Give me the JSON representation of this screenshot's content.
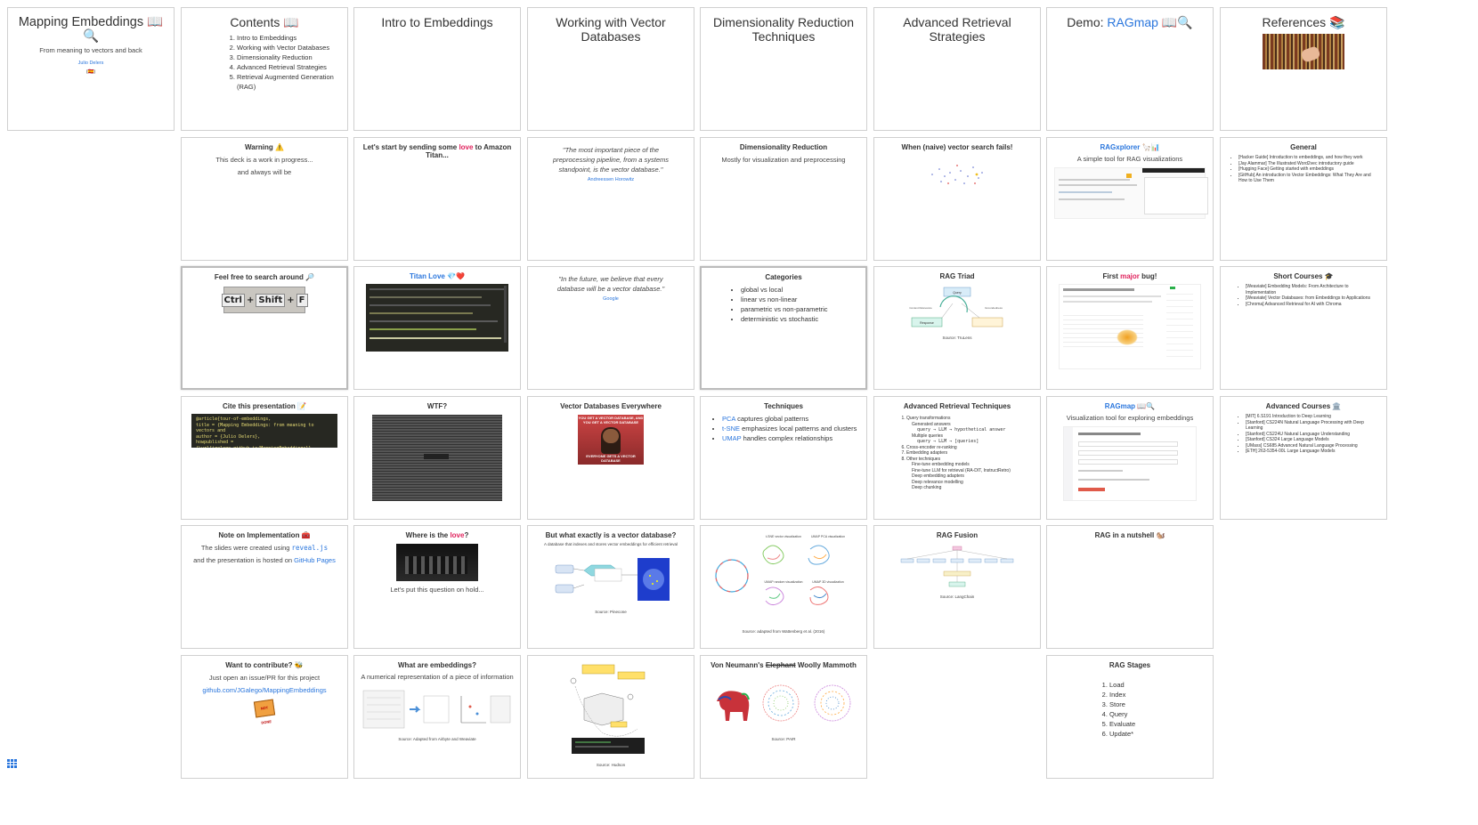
{
  "slides": {
    "c0_0": {
      "title": "Mapping Embeddings 📖🔍",
      "subtitle": "From meaning to vectors and back",
      "author": "Julio Delers",
      "flag": "(🇪🇸)"
    },
    "c1_0": {
      "title": "Contents 📖",
      "items": [
        "Intro to Embeddings",
        "Working with Vector Databases",
        "Dimensionality Reduction",
        "Advanced Retrieval Strategies",
        "Retrieval Augmented Generation (RAG)"
      ]
    },
    "c1_1": {
      "title": "Warning ⚠️",
      "line1": "This deck is a work in progress...",
      "line2": "and always will be"
    },
    "c1_2": {
      "title": "Feel free to search around 🔎",
      "keys": [
        "Ctrl",
        "Shift",
        "F"
      ]
    },
    "c1_3": {
      "title": "Cite this presentation 📝",
      "code": [
        "@article{tour-of-embeddings,",
        "  title = {Mapping Embeddings: from meaning to vectors and",
        "  author = {Julio Delers},",
        "  howpublished = {\\url{jgalego.github.io/MappingEmbeddings}},",
        "  year = {2024}",
        "}"
      ]
    },
    "c1_4": {
      "title": "Note on Implementation 🧰",
      "l1a": "The slides were created using ",
      "l1b": "reveal.js",
      "l2a": "and the presentation is hosted on ",
      "l2b": "GitHub Pages"
    },
    "c1_5": {
      "title": "Want to contribute? 🐝",
      "l1": "Just open an issue/PR for this project",
      "link": "github.com/JGalego/MappingEmbeddings",
      "sign": "NOT DONE"
    },
    "c2_0": {
      "title": "Intro to Embeddings"
    },
    "c2_1": {
      "t1": "Let's start by sending some ",
      "t2": "love",
      "t3": " to Amazon Titan..."
    },
    "c2_2": {
      "title": "Titan Love 💎❤️"
    },
    "c2_3": {
      "title": "WTF?"
    },
    "c2_4": {
      "t1": "Where is the ",
      "t2": "love",
      "t3": "?",
      "caption": "Let's put this question on hold..."
    },
    "c2_5": {
      "title": "What are embeddings?",
      "subtitle": "A numerical representation of a piece of information",
      "source": "Source: Adapted from Airbyte and Weaviate"
    },
    "c3_0": {
      "title": "Working with Vector Databases"
    },
    "c3_1": {
      "quote": "\"The most important piece of the preprocessing pipeline, from a systems standpoint, is the vector database.\"",
      "attrib": "Andreessen Horowitz"
    },
    "c3_2": {
      "quote": "\"In the future, we believe that every database will be a vector database.\"",
      "attrib": "Google"
    },
    "c3_3": {
      "title": "Vector Databases Everywhere",
      "meme_top": "YOU GET A VECTOR DATABASE, AND YOU GET A VECTOR DATABASE",
      "meme_bottom": "EVERYONE GETS A VECTOR DATABASE"
    },
    "c3_4": {
      "title": "But what exactly is a vector database?",
      "subtitle": "A database that indexes and stores vector embeddings for efficient retrieval",
      "source": "Source: Pinecone"
    },
    "c3_5": {
      "source": "Source: Hudson"
    },
    "c4_0": {
      "title": "Dimensionality Reduction Techniques"
    },
    "c4_1": {
      "title": "Dimensionality Reduction",
      "line": "Mostly for visualization and preprocessing"
    },
    "c4_2": {
      "title": "Categories",
      "items": [
        "global vs local",
        "linear vs non-linear",
        "parametric vs non-parametric",
        "deterministic vs stochastic"
      ]
    },
    "c4_3": {
      "title": "Techniques",
      "items": [
        {
          "k": "PCA",
          "v": " captures global patterns"
        },
        {
          "k": "t-SNE",
          "v": " emphasizes local patterns and clusters"
        },
        {
          "k": "UMAP",
          "v": " handles complex relationships"
        }
      ]
    },
    "c4_4": {
      "labels": [
        "t-SNE vector visualization",
        "UMAP PCA visualization",
        "UMAP random visualization",
        "UMAP 3D visualization"
      ],
      "source": "Source: adapted from Wattenberg et al. (2016)"
    },
    "c4_5": {
      "t1": "Von Neumann's ",
      "t2": "Elephant",
      "t3": " Woolly Mammoth",
      "source": "Source: PAIR"
    },
    "c5_0": {
      "title": "Advanced Retrieval Strategies"
    },
    "c5_1": {
      "title": "When (naive) vector search fails!"
    },
    "c5_2": {
      "title": "RAG Triad",
      "source": "Source: TruLens",
      "nodes": [
        "Query",
        "Context Relevance",
        "Response",
        "Groundedness"
      ]
    },
    "c5_3": {
      "title": "Advanced Retrieval Techniques",
      "items": [
        "Query transformations",
        "Generated answers",
        "query → LLM → hypothetical answer",
        "Multiple queries",
        "query → LLM → [queries]",
        "Cross-encoder re-ranking",
        "Embedding adapters",
        "Other techniques",
        "Fine-tune embedding models",
        "Fine-tune LLM for retrieval (RA-DIT, InstructRetro)",
        "Deep embedding adapters",
        "Deep relevance modelling",
        "Deep chunking"
      ]
    },
    "c5_4": {
      "title": "RAG Fusion",
      "source": "Source: LangChain"
    },
    "c6_0": {
      "title_a": "Demo: ",
      "title_b": "RAGmap",
      "title_c": " 📖🔍"
    },
    "c6_1": {
      "title": "RAGxplorer 🦙📊",
      "subtitle": "A simple tool for RAG visualizations"
    },
    "c6_2": {
      "t1": "First ",
      "t2": "major",
      "t3": " bug!"
    },
    "c6_3": {
      "title_a": "RAGmap",
      "title_b": " 📖🔍",
      "subtitle": "Visualization tool for exploring embeddings"
    },
    "c6_4": {
      "title": "RAG in a nutshell 🐿️"
    },
    "c6_5": {
      "title": "RAG Stages",
      "items": [
        "Load",
        "Index",
        "Store",
        "Query",
        "Evaluate",
        "Update*"
      ]
    },
    "c7_0": {
      "title": "References 📚"
    },
    "c7_1": {
      "title": "General",
      "items": [
        "[Hacker Guide] Introduction to embeddings, and how they work",
        "[Jay Alammar] The Illustrated Word2vec introductory guide",
        "[Hugging Face] Getting started with embeddings",
        "[GitHub] An introduction to Vector Embeddings: What They Are and How to Use Them"
      ]
    },
    "c7_2": {
      "title": "Short Courses 🎓",
      "items": [
        "[Weaviate] Embedding Models: From Architecture to Implementation",
        "[Weaviate] Vector Databases: from Embeddings to Applications",
        "[Chroma] Advanced Retrieval for AI with Chroma"
      ]
    },
    "c7_3": {
      "title": "Advanced Courses 🏛️",
      "items": [
        "[MIT] 6.S191 Introduction to Deep Learning",
        "[Stanford] CS224N Natural Language Processing with Deep Learning",
        "[Stanford] CS224U Natural Language Understanding",
        "[Stanford] CS324 Large Language Models",
        "[UMass] CS685 Advanced Natural Language Processing",
        "[ETH] 263-5354-00L Large Language Models"
      ]
    }
  }
}
